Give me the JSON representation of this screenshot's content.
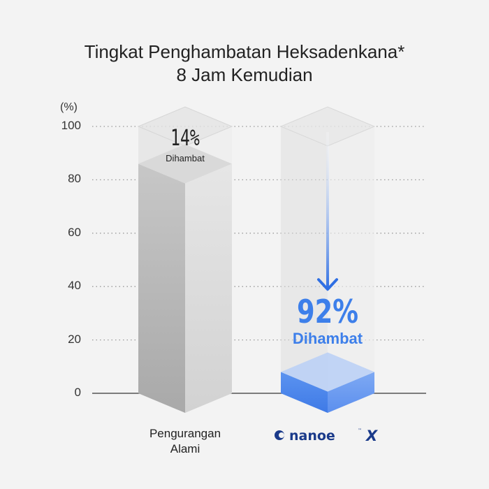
{
  "title_line1": "Tingkat Penghambatan Heksadenkana*",
  "title_line2": "8 Jam Kemudian",
  "chart_data": {
    "type": "bar",
    "title": "Tingkat Penghambatan Heksadenkana* 8 Jam Kemudian",
    "ylabel": "(%)",
    "ylim": [
      0,
      100
    ],
    "yticks": [
      0,
      20,
      40,
      60,
      80,
      100
    ],
    "categories": [
      "Pengurangan Alami",
      "nanoeX"
    ],
    "values": [
      86,
      8
    ],
    "annotations": [
      {
        "value": "14%",
        "label": "Dihambat"
      },
      {
        "value": "92%",
        "label": "Dihambat"
      }
    ],
    "grid": true,
    "colors": {
      "natural": "#c9c9c9",
      "nanoe": "#3d7fea"
    }
  },
  "x_labels": {
    "natural_line1": "Pengurangan",
    "natural_line2": "Alami"
  },
  "brand": {
    "name": "nanoeX",
    "text": "nanoe",
    "x_letter": "X",
    "tm": "™",
    "color": "#1a3a8a"
  }
}
